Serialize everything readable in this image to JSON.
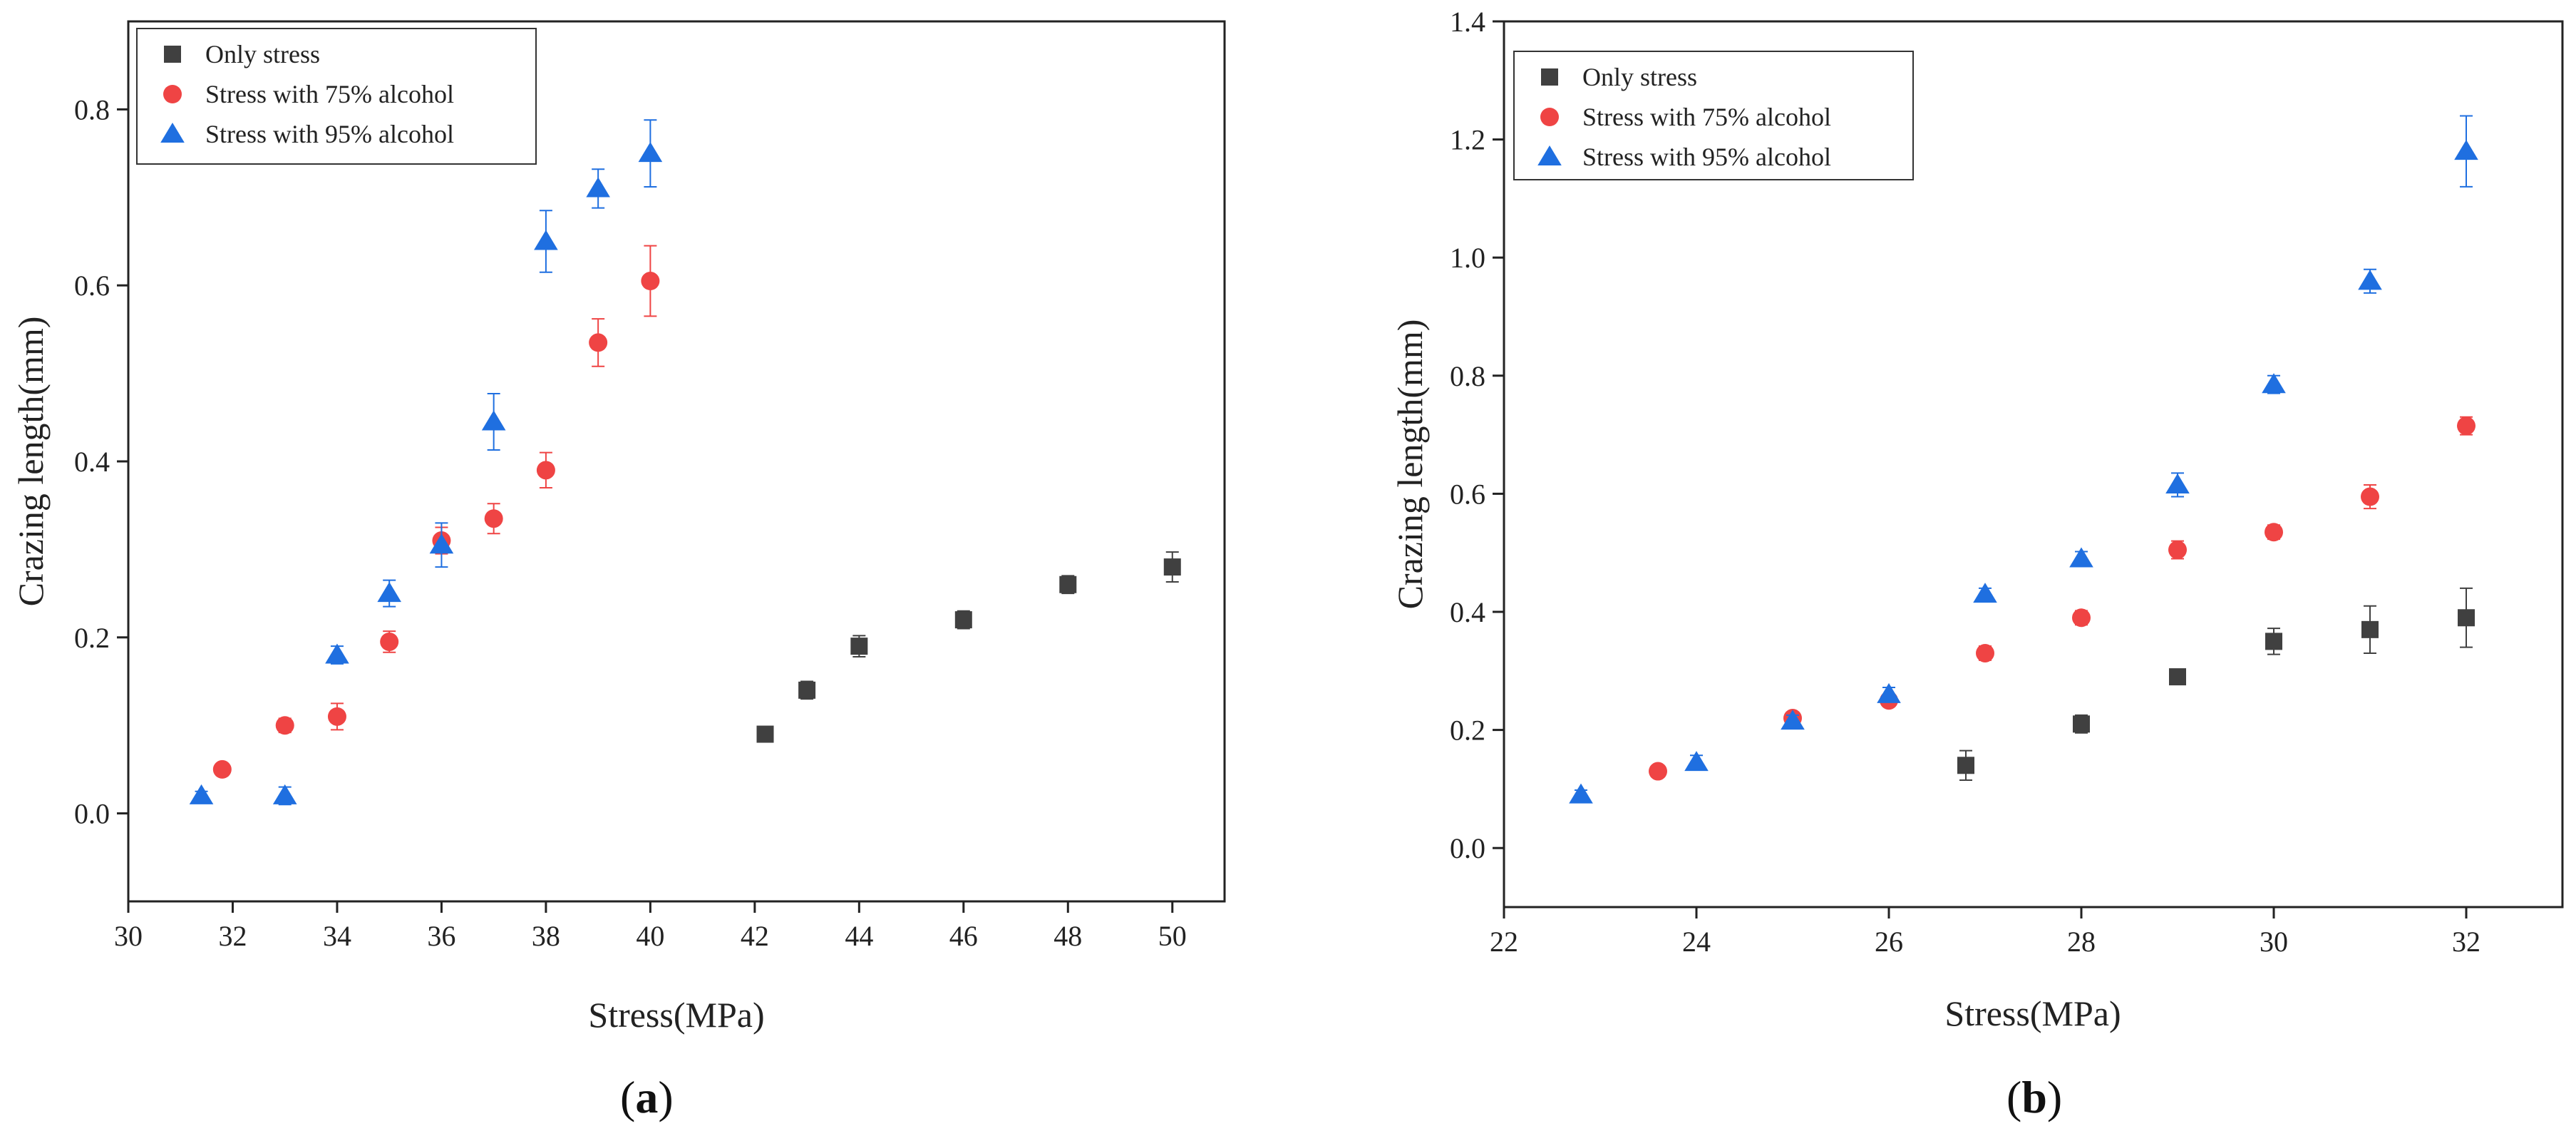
{
  "chart_data": [
    {
      "type": "scatter",
      "panel_label": "a",
      "xlabel": "Stress(MPa)",
      "ylabel": "Crazing length(mm)",
      "xlim": [
        30,
        51
      ],
      "ylim": [
        -0.1,
        0.9
      ],
      "xticks": [
        30,
        32,
        34,
        36,
        38,
        40,
        42,
        44,
        46,
        48,
        50
      ],
      "yticks": [
        0.0,
        0.2,
        0.4,
        0.6,
        0.8
      ],
      "ytick_labels": [
        "0.0",
        "0.2",
        "0.4",
        "0.6",
        "0.8"
      ],
      "legend_position": "top-left",
      "series": [
        {
          "name": "Only stress",
          "marker": "square",
          "color": "#404040",
          "x": [
            42.2,
            43,
            44,
            46,
            48,
            50
          ],
          "y": [
            0.09,
            0.14,
            0.19,
            0.22,
            0.26,
            0.28
          ],
          "err": [
            0.008,
            0.01,
            0.012,
            0.01,
            0.01,
            0.017
          ]
        },
        {
          "name": "Stress with 75% alcohol",
          "marker": "circle",
          "color": "#ef4444",
          "x": [
            31.8,
            33,
            34,
            35,
            36,
            37,
            38,
            39,
            40
          ],
          "y": [
            0.05,
            0.1,
            0.11,
            0.195,
            0.31,
            0.335,
            0.39,
            0.535,
            0.605
          ],
          "err": [
            0.006,
            0.008,
            0.015,
            0.012,
            0.015,
            0.017,
            0.02,
            0.027,
            0.04
          ]
        },
        {
          "name": "Stress with 95% alcohol",
          "marker": "triangle",
          "color": "#1f6fe0",
          "x": [
            31.4,
            33,
            34,
            35,
            36,
            37,
            38,
            39,
            40
          ],
          "y": [
            0.02,
            0.02,
            0.18,
            0.25,
            0.305,
            0.445,
            0.65,
            0.71,
            0.75
          ],
          "err": [
            0.005,
            0.01,
            0.01,
            0.015,
            0.025,
            0.032,
            0.035,
            0.022,
            0.038
          ]
        }
      ]
    },
    {
      "type": "scatter",
      "panel_label": "b",
      "xlabel": "Stress(MPa)",
      "ylabel": "Crazing length(mm)",
      "xlim": [
        22,
        33
      ],
      "ylim": [
        -0.1,
        1.4
      ],
      "xticks": [
        22,
        24,
        26,
        28,
        30,
        32
      ],
      "yticks": [
        0.0,
        0.2,
        0.4,
        0.6,
        0.8,
        1.0,
        1.2,
        1.4
      ],
      "ytick_labels": [
        "0.0",
        "0.2",
        "0.4",
        "0.6",
        "0.8",
        "1.0",
        "1.2",
        "1.4"
      ],
      "legend_position": "top-left",
      "series": [
        {
          "name": "Only stress",
          "marker": "square",
          "color": "#404040",
          "x": [
            26.8,
            28,
            29,
            30,
            31,
            32
          ],
          "y": [
            0.14,
            0.21,
            0.29,
            0.35,
            0.37,
            0.39
          ],
          "err": [
            0.025,
            0.015,
            0.012,
            0.022,
            0.04,
            0.05
          ]
        },
        {
          "name": "Stress with 75% alcohol",
          "marker": "circle",
          "color": "#ef4444",
          "x": [
            23.6,
            25,
            26,
            27,
            28,
            29,
            30,
            31,
            32
          ],
          "y": [
            0.13,
            0.22,
            0.25,
            0.33,
            0.39,
            0.505,
            0.535,
            0.595,
            0.715
          ],
          "err": [
            0.008,
            0.01,
            0.01,
            0.012,
            0.012,
            0.015,
            0.012,
            0.02,
            0.015
          ]
        },
        {
          "name": "Stress with 95% alcohol",
          "marker": "triangle",
          "color": "#1f6fe0",
          "x": [
            22.8,
            24,
            25,
            26,
            27,
            28,
            29,
            30,
            31,
            32
          ],
          "y": [
            0.09,
            0.145,
            0.215,
            0.26,
            0.43,
            0.49,
            0.615,
            0.785,
            0.96,
            1.18
          ],
          "err": [
            0.008,
            0.012,
            0.01,
            0.012,
            0.01,
            0.012,
            0.02,
            0.015,
            0.02,
            0.06
          ]
        }
      ]
    }
  ]
}
